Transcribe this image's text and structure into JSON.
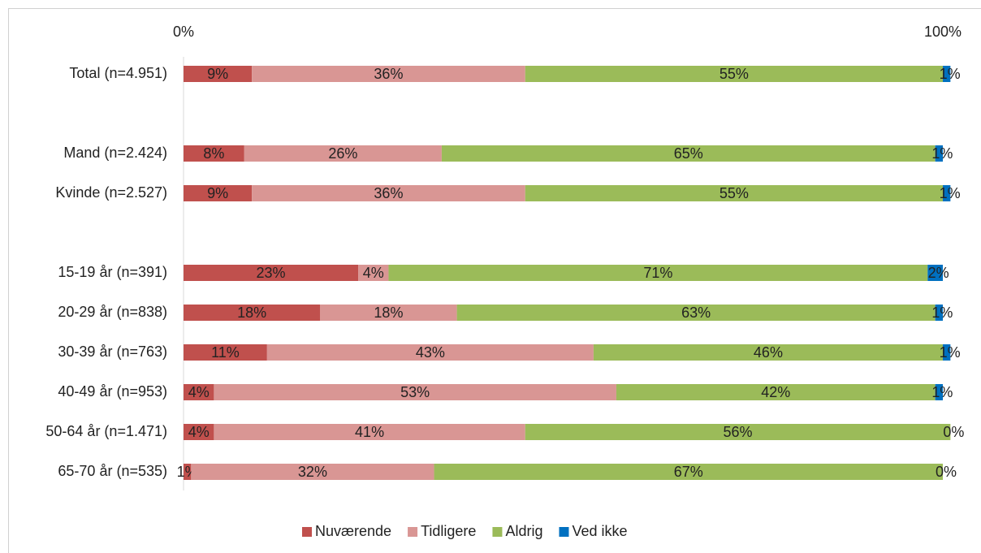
{
  "chart_data": {
    "type": "stacked-bar-horizontal",
    "categories": [
      "Total (n=4.951)",
      null,
      "Mand (n=2.424)",
      "Kvinde (n=2.527)",
      null,
      "15-19 år (n=391)",
      "20-29 år (n=838)",
      "30-39 år (n=763)",
      "40-49 år (n=953)",
      "50-64 år (n=1.471)",
      "65-70 år (n=535)"
    ],
    "series": [
      {
        "name": "Nuværende",
        "color": "#c0504d",
        "values": [
          9,
          null,
          8,
          9,
          null,
          23,
          18,
          11,
          4,
          4,
          1
        ],
        "value_labels": [
          "9%",
          null,
          "8%",
          "9%",
          null,
          "23%",
          "18%",
          "11%",
          "4%",
          "4%",
          "1%"
        ]
      },
      {
        "name": "Tidligere",
        "color": "#d99694",
        "values": [
          36,
          null,
          26,
          36,
          null,
          4,
          18,
          43,
          53,
          41,
          32
        ],
        "value_labels": [
          "36%",
          null,
          "26%",
          "36%",
          null,
          "4%",
          "18%",
          "43%",
          "53%",
          "41%",
          "32%"
        ]
      },
      {
        "name": "Aldrig",
        "color": "#9bbb59",
        "values": [
          55,
          null,
          65,
          55,
          null,
          71,
          63,
          46,
          42,
          56,
          67
        ],
        "value_labels": [
          "55%",
          null,
          "65%",
          "55%",
          null,
          "71%",
          "63%",
          "46%",
          "42%",
          "56%",
          "67%"
        ]
      },
      {
        "name": "Ved ikke",
        "color": "#0070c0",
        "values": [
          1,
          null,
          1,
          1,
          null,
          2,
          1,
          1,
          1,
          0,
          0
        ],
        "value_labels": [
          "1%",
          null,
          "1%",
          "1%",
          null,
          "2%",
          "1%",
          "1%",
          "1%",
          "0%",
          "0%"
        ]
      }
    ],
    "xlim": [
      0,
      100
    ],
    "xticks": [
      {
        "value": 0,
        "label": "0%"
      },
      {
        "value": 100,
        "label": "100%"
      }
    ],
    "legend": "bottom"
  }
}
